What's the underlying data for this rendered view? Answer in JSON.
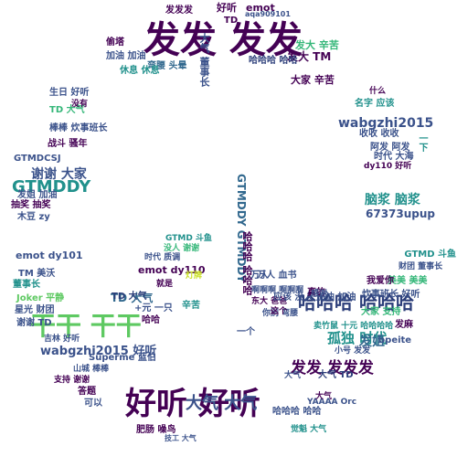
{
  "palette": {
    "purple": "#440154",
    "indigo": "#3b528b",
    "blue": "#31688e",
    "teal": "#21918c",
    "green": "#35b779",
    "lime": "#5ec962",
    "yellow": "#c8e020",
    "navy": "#2c3e7a"
  },
  "words": [
    {
      "text": "发发 发发",
      "color": "purple"
    },
    {
      "text": "好听 好听",
      "color": "purple"
    },
    {
      "text": "干干 干干",
      "color": "lime"
    },
    {
      "text": "哈哈哈 哈哈哈",
      "color": "navy"
    },
    {
      "text": "发发 发发发",
      "color": "purple"
    },
    {
      "text": "大气 大气",
      "color": "indigo"
    },
    {
      "text": "谢谢 大家",
      "color": "indigo"
    },
    {
      "text": "GTMDDY",
      "color": "teal"
    },
    {
      "text": "孤独 时代",
      "color": "teal"
    },
    {
      "text": "wabgzhi2015",
      "color": "indigo"
    },
    {
      "text": "wabgzhi2015 好听",
      "color": "indigo"
    },
    {
      "text": "脑浆 脑浆",
      "color": "teal"
    },
    {
      "text": "67373upup",
      "color": "indigo"
    },
    {
      "text": "发姐",
      "color": "blue"
    },
    {
      "text": "大家 辛苦",
      "color": "purple"
    },
    {
      "text": "发大 TM",
      "color": "purple"
    },
    {
      "text": "TD 大气",
      "color": "blue"
    },
    {
      "text": "GTMDDY GTMDDY",
      "color": "blue"
    },
    {
      "text": "Superme 蓝伯",
      "color": "indigo"
    },
    {
      "text": "emot dy110",
      "color": "purple"
    },
    {
      "text": "emot dy101",
      "color": "indigo"
    },
    {
      "text": "emot",
      "color": "purple"
    },
    {
      "text": "好听",
      "color": "purple"
    },
    {
      "text": "发发发",
      "color": "purple"
    },
    {
      "text": "发大 辛苦",
      "color": "green"
    },
    {
      "text": "大气 董事长",
      "color": "indigo"
    },
    {
      "text": "哈哈哈 哈哈",
      "color": "navy"
    },
    {
      "text": "弯腰 头晕",
      "color": "blue"
    },
    {
      "text": "休息 休息",
      "color": "teal"
    },
    {
      "text": "加油 加油",
      "color": "indigo"
    },
    {
      "text": "偷塔",
      "color": "purple"
    },
    {
      "text": "生日 好听",
      "color": "indigo"
    },
    {
      "text": "TD 大气",
      "color": "green"
    },
    {
      "text": "没有",
      "color": "purple"
    },
    {
      "text": "棒棒 炊事班长",
      "color": "indigo"
    },
    {
      "text": "战斗 骚年",
      "color": "purple"
    },
    {
      "text": "GTMDCSJ",
      "color": "indigo"
    },
    {
      "text": "发姐 加油",
      "color": "indigo"
    },
    {
      "text": "抽奖 抽奖",
      "color": "purple"
    },
    {
      "text": "木豆 zy",
      "color": "indigo"
    },
    {
      "text": "TM 美沃",
      "color": "indigo"
    },
    {
      "text": "董事长",
      "color": "teal"
    },
    {
      "text": "Joker 平静",
      "color": "lime"
    },
    {
      "text": "星光 财团",
      "color": "indigo"
    },
    {
      "text": "谢谢 TD",
      "color": "indigo"
    },
    {
      "text": "吉林 好听",
      "color": "indigo"
    },
    {
      "text": "山城 棒棒",
      "color": "indigo"
    },
    {
      "text": "支持 谢谢",
      "color": "purple"
    },
    {
      "text": "答题",
      "color": "purple"
    },
    {
      "text": "可以",
      "color": "indigo"
    },
    {
      "text": "肥肠 噪鸟",
      "color": "purple"
    },
    {
      "text": "技工 大气",
      "color": "indigo"
    },
    {
      "text": "TD 大气",
      "color": "navy"
    },
    {
      "text": "+元 一只",
      "color": "indigo"
    },
    {
      "text": "哈哈",
      "color": "purple"
    },
    {
      "text": "GTMD 斗鱼",
      "color": "teal"
    },
    {
      "text": "没人 谢谢",
      "color": "green"
    },
    {
      "text": "时代 质调",
      "color": "indigo"
    },
    {
      "text": "就是",
      "color": "purple"
    },
    {
      "text": "辛苦",
      "color": "teal"
    },
    {
      "text": "万人 血书",
      "color": "indigo"
    },
    {
      "text": "哈哈哈 哈哈哈",
      "color": "purple"
    },
    {
      "text": "啊啊啊 啊啊啊",
      "color": "indigo"
    },
    {
      "text": "东大 爸爸",
      "color": "purple"
    },
    {
      "text": "你别 弯腰",
      "color": "indigo"
    },
    {
      "text": "应该 没人 加油 加油",
      "color": "indigo"
    },
    {
      "text": "这个",
      "color": "purple"
    },
    {
      "text": "卖竹鼠 十元 哈哈哈哈",
      "color": "teal"
    },
    {
      "text": "bpeite",
      "color": "indigo"
    },
    {
      "text": "小号 发发",
      "color": "indigo"
    },
    {
      "text": "大气 TD",
      "color": "navy"
    },
    {
      "text": "YAAAA Orc",
      "color": "indigo"
    },
    {
      "text": "哈哈哈 哈哈",
      "color": "indigo"
    },
    {
      "text": "觉魁 大气",
      "color": "teal"
    },
    {
      "text": "大气",
      "color": "purple"
    },
    {
      "text": "什么",
      "color": "purple"
    },
    {
      "text": "名字 应该",
      "color": "teal"
    },
    {
      "text": "收收 收收",
      "color": "indigo"
    },
    {
      "text": "阿发 阿发",
      "color": "indigo"
    },
    {
      "text": "时代 大海",
      "color": "indigo"
    },
    {
      "text": "dy110 好听",
      "color": "purple"
    },
    {
      "text": "一下",
      "color": "teal"
    },
    {
      "text": "美美 美美",
      "color": "green"
    },
    {
      "text": "炊事班长 好听",
      "color": "indigo"
    },
    {
      "text": "我爱你",
      "color": "purple"
    },
    {
      "text": "大家 支持",
      "color": "green"
    },
    {
      "text": "财团 董事长",
      "color": "indigo"
    },
    {
      "text": "GTMD 斗鱼",
      "color": "teal"
    },
    {
      "text": "发麻",
      "color": "purple"
    },
    {
      "text": "真的",
      "color": "purple"
    },
    {
      "text": "感谢",
      "color": "indigo"
    },
    {
      "text": "一个",
      "color": "indigo"
    },
    {
      "text": "万人",
      "color": "indigo"
    },
    {
      "text": "aqa909101",
      "color": "indigo"
    },
    {
      "text": "TD",
      "color": "purple"
    },
    {
      "text": "灯牌",
      "color": "yellow"
    },
    {
      "text": "大气",
      "color": "indigo"
    }
  ]
}
